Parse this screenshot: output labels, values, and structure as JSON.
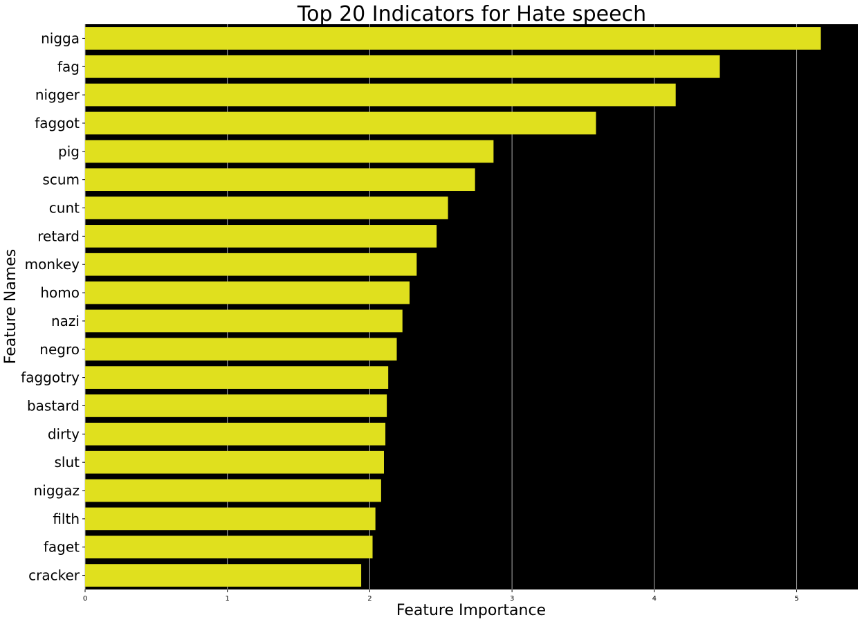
{
  "chart_data": {
    "type": "bar",
    "orientation": "horizontal",
    "title": "Top 20 Indicators for Hate speech",
    "xlabel": "Feature Importance",
    "ylabel": "Feature Names",
    "categories": [
      "nigga",
      "fag",
      "nigger",
      "faggot",
      "pig",
      "scum",
      "cunt",
      "retard",
      "monkey",
      "homo",
      "nazi",
      "negro",
      "faggotry",
      "bastard",
      "dirty",
      "slut",
      "niggaz",
      "filth",
      "faget",
      "cracker"
    ],
    "values": [
      5.17,
      4.46,
      4.15,
      3.59,
      2.87,
      2.74,
      2.55,
      2.47,
      2.33,
      2.28,
      2.23,
      2.19,
      2.13,
      2.12,
      2.11,
      2.1,
      2.08,
      2.04,
      2.02,
      1.94
    ],
    "xlim": [
      0,
      5.43
    ],
    "xticks": [
      "0",
      "1",
      "2",
      "3",
      "4",
      "5"
    ],
    "grid": "x",
    "legend": "none",
    "colors": {
      "bar": "#e0e01e",
      "plot_background": "#000000",
      "grid": "#b0b0b0",
      "page_background": "#ffffff"
    }
  }
}
